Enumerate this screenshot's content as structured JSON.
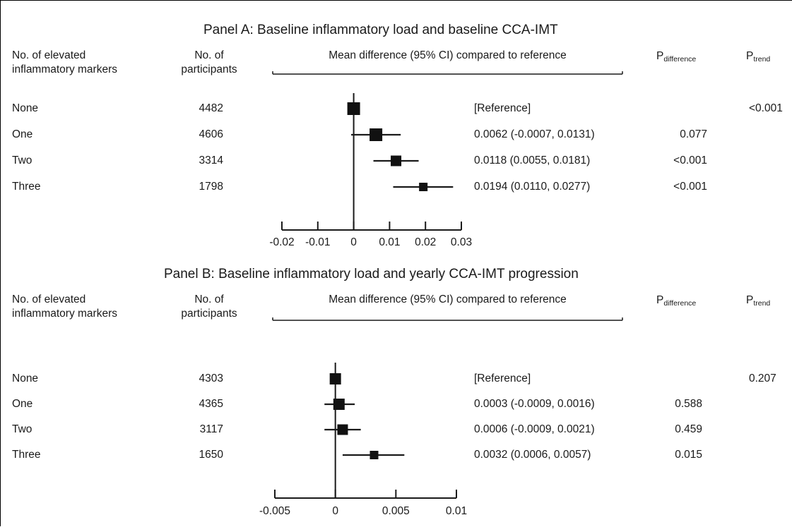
{
  "columns": {
    "markers_line1": "No. of elevated",
    "markers_line2": "inflammatory markers",
    "participants_line1": "No. of",
    "participants_line2": "participants",
    "mean_diff": "Mean difference (95% CI) compared to reference",
    "p_diff_main": "P",
    "p_diff_sub": "difference",
    "p_trend_main": "P",
    "p_trend_sub": "trend"
  },
  "chart_data": [
    {
      "type": "forest",
      "title": "Panel A: Baseline inflammatory load and baseline CCA-IMT",
      "xlim": [
        -0.02,
        0.03
      ],
      "xticks": [
        -0.02,
        -0.01,
        0,
        0.01,
        0.02,
        0.03
      ],
      "xtick_labels": [
        "-0.02",
        "-0.01",
        "0",
        "0.01",
        "0.02",
        "0.03"
      ],
      "rows": [
        {
          "label": "None",
          "n": "4482",
          "est": 0,
          "lo": 0,
          "hi": 0,
          "text": "[Reference]",
          "p_diff": "",
          "p_trend": "<0.001"
        },
        {
          "label": "One",
          "n": "4606",
          "est": 0.0062,
          "lo": -0.0007,
          "hi": 0.0131,
          "text": "0.0062 (-0.0007, 0.0131)",
          "p_diff": "0.077",
          "p_trend": ""
        },
        {
          "label": "Two",
          "n": "3314",
          "est": 0.0118,
          "lo": 0.0055,
          "hi": 0.0181,
          "text": "0.0118 (0.0055, 0.0181)",
          "p_diff": "<0.001",
          "p_trend": ""
        },
        {
          "label": "Three",
          "n": "1798",
          "est": 0.0194,
          "lo": 0.011,
          "hi": 0.0277,
          "text": "0.0194 (0.0110, 0.0277)",
          "p_diff": "<0.001",
          "p_trend": ""
        }
      ]
    },
    {
      "type": "forest",
      "title": "Panel B: Baseline inflammatory load and yearly CCA-IMT progression",
      "xlim": [
        -0.005,
        0.01
      ],
      "xticks": [
        -0.005,
        0,
        0.005,
        0.01
      ],
      "xtick_labels": [
        "-0.005",
        "0",
        "0.005",
        "0.01"
      ],
      "rows": [
        {
          "label": "None",
          "n": "4303",
          "est": 0,
          "lo": 0,
          "hi": 0,
          "text": "[Reference]",
          "p_diff": "",
          "p_trend": "0.207"
        },
        {
          "label": "One",
          "n": "4365",
          "est": 0.0003,
          "lo": -0.0009,
          "hi": 0.0016,
          "text": "0.0003 (-0.0009, 0.0016)",
          "p_diff": "0.588",
          "p_trend": ""
        },
        {
          "label": "Two",
          "n": "3117",
          "est": 0.0006,
          "lo": -0.0009,
          "hi": 0.0021,
          "text": "0.0006 (-0.0009, 0.0021)",
          "p_diff": "0.459",
          "p_trend": ""
        },
        {
          "label": "Three",
          "n": "1650",
          "est": 0.0032,
          "lo": 0.0006,
          "hi": 0.0057,
          "text": "0.0032 (0.0006, 0.0057)",
          "p_diff": "0.015",
          "p_trend": ""
        }
      ]
    }
  ]
}
